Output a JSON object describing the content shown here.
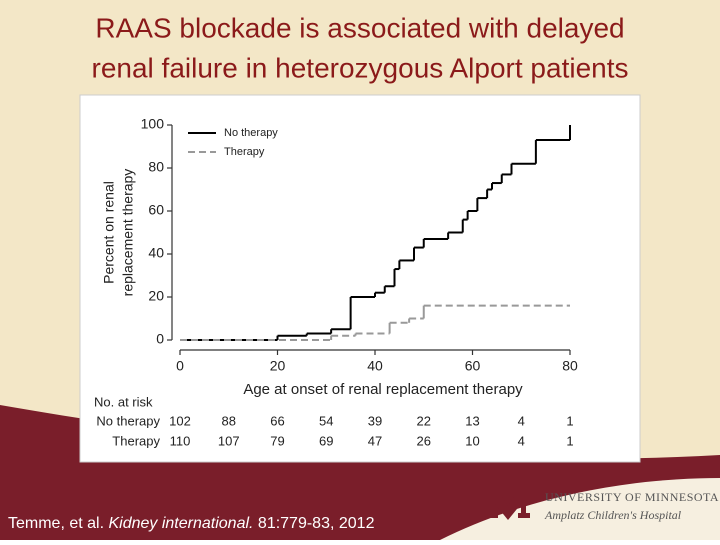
{
  "slide": {
    "title_lines": [
      "RAAS blockade is associated with delayed",
      "renal failure in heterozygous Alport patients"
    ],
    "citation": [
      "Temme, et al. ",
      "Kidney international.",
      " 81:779-83, 2012"
    ],
    "logo": {
      "university": "UNIVERSITY OF MINNESOTA",
      "hospital": "Amplatz Children's Hospital"
    }
  },
  "chart_data": {
    "type": "step",
    "xlabel": "Age at onset of renal replacement therapy",
    "ylabel": [
      "Percent on renal",
      "replacement therapy"
    ],
    "xlim": [
      0,
      80
    ],
    "ylim": [
      0,
      100
    ],
    "xticks": [
      0,
      20,
      40,
      60,
      80
    ],
    "yticks": [
      0,
      20,
      40,
      60,
      80,
      100
    ],
    "legend": "upper left",
    "series": [
      {
        "name": "No therapy",
        "color": "#000000",
        "line_style": "solid",
        "x": [
          0,
          20,
          26,
          31,
          35,
          40,
          42,
          44,
          45,
          48,
          50,
          55,
          58,
          59,
          61,
          63,
          64,
          66,
          68,
          73,
          80
        ],
        "values": [
          0,
          2,
          3,
          5,
          20,
          22,
          25,
          33,
          37,
          43,
          47,
          50,
          56,
          60,
          66,
          70,
          73,
          77,
          82,
          93,
          100
        ]
      },
      {
        "name": "Therapy",
        "color": "#999999",
        "line_style": "dashed",
        "x": [
          0,
          31,
          36,
          43,
          47,
          50
        ],
        "values": [
          0,
          2,
          3,
          8,
          10,
          16
        ]
      }
    ],
    "risk_table": {
      "title": "No. at risk",
      "x": [
        0,
        10,
        20,
        30,
        40,
        50,
        60,
        70,
        80
      ],
      "rows": [
        {
          "name": "No therapy",
          "values": [
            102,
            88,
            66,
            54,
            39,
            22,
            13,
            4,
            1
          ]
        },
        {
          "name": "Therapy",
          "values": [
            110,
            107,
            79,
            69,
            47,
            26,
            10,
            4,
            1
          ]
        }
      ]
    }
  }
}
